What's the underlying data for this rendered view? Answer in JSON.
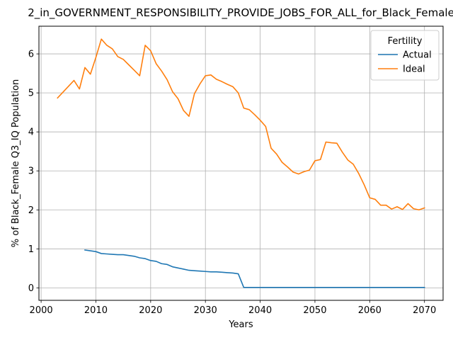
{
  "chart_data": {
    "type": "line",
    "title": "2_in_GOVERNMENT_RESPONSIBILITY_PROVIDE_JOBS_FOR_ALL_for_Black_Female",
    "xlabel": "Years",
    "ylabel": "% of Black_Female Q3_IQ Population",
    "xlim": [
      1999.6,
      2073.4
    ],
    "ylim": [
      -0.32,
      6.71
    ],
    "xticks": [
      2000,
      2010,
      2020,
      2030,
      2040,
      2050,
      2060,
      2070
    ],
    "yticks": [
      0,
      1,
      2,
      3,
      4,
      5,
      6
    ],
    "grid": true,
    "legend": {
      "title": "Fertility",
      "placement": "top-right"
    },
    "series": [
      {
        "name": "Actual",
        "color": "#1f77b4",
        "x": [
          2008,
          2009,
          2010,
          2011,
          2012,
          2013,
          2014,
          2015,
          2016,
          2017,
          2018,
          2019,
          2020,
          2021,
          2022,
          2023,
          2024,
          2025,
          2026,
          2027,
          2028,
          2029,
          2030,
          2031,
          2032,
          2033,
          2034,
          2035,
          2036,
          2037,
          2038,
          2039,
          2040,
          2045,
          2050,
          2055,
          2060,
          2065,
          2070
        ],
        "y": [
          0.97,
          0.95,
          0.93,
          0.88,
          0.87,
          0.86,
          0.85,
          0.85,
          0.83,
          0.81,
          0.77,
          0.75,
          0.7,
          0.68,
          0.62,
          0.6,
          0.54,
          0.51,
          0.48,
          0.45,
          0.44,
          0.43,
          0.42,
          0.41,
          0.41,
          0.4,
          0.39,
          0.38,
          0.36,
          0.01,
          0.01,
          0.01,
          0.01,
          0.01,
          0.01,
          0.01,
          0.01,
          0.01,
          0.01
        ]
      },
      {
        "name": "Ideal",
        "color": "#ff7f0e",
        "x": [
          2003,
          2004,
          2005,
          2006,
          2007,
          2008,
          2009,
          2010,
          2011,
          2012,
          2013,
          2014,
          2015,
          2016,
          2017,
          2018,
          2019,
          2020,
          2021,
          2022,
          2023,
          2024,
          2025,
          2026,
          2027,
          2028,
          2029,
          2030,
          2031,
          2032,
          2033,
          2034,
          2035,
          2036,
          2037,
          2038,
          2039,
          2040,
          2041,
          2042,
          2043,
          2044,
          2045,
          2046,
          2047,
          2048,
          2049,
          2050,
          2051,
          2052,
          2053,
          2054,
          2055,
          2056,
          2057,
          2058,
          2059,
          2060,
          2061,
          2062,
          2063,
          2064,
          2065,
          2066,
          2067,
          2068,
          2069,
          2070
        ],
        "y": [
          4.87,
          5.02,
          5.17,
          5.32,
          5.1,
          5.65,
          5.48,
          5.91,
          6.38,
          6.22,
          6.13,
          5.93,
          5.86,
          5.72,
          5.58,
          5.44,
          6.22,
          6.08,
          5.75,
          5.56,
          5.34,
          5.03,
          4.85,
          4.55,
          4.4,
          4.98,
          5.23,
          5.44,
          5.46,
          5.35,
          5.29,
          5.22,
          5.16,
          5.0,
          4.61,
          4.57,
          4.44,
          4.3,
          4.14,
          3.58,
          3.43,
          3.22,
          3.1,
          2.97,
          2.92,
          2.98,
          3.02,
          3.26,
          3.29,
          3.74,
          3.72,
          3.71,
          3.48,
          3.28,
          3.17,
          2.93,
          2.64,
          2.31,
          2.27,
          2.12,
          2.12,
          2.02,
          2.08,
          2.01,
          2.16,
          2.03,
          2.0,
          2.05
        ]
      }
    ]
  }
}
